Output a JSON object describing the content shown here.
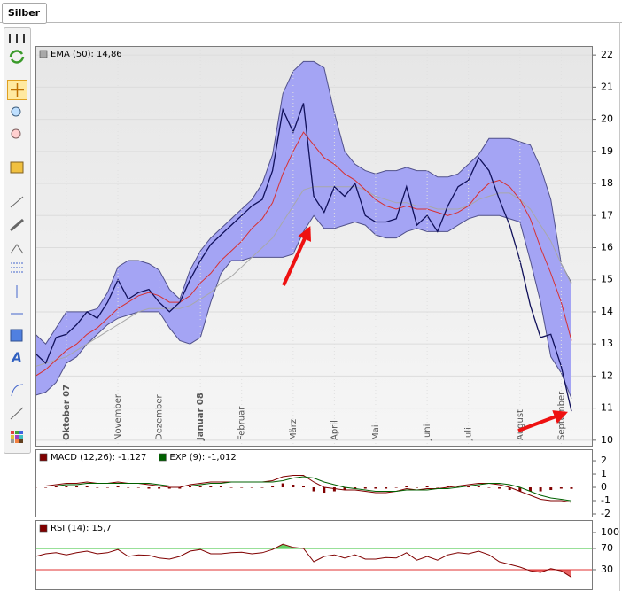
{
  "tab": "Silber",
  "chart_data": [
    {
      "type": "line",
      "categories": [
        null,
        null,
        null,
        "Oktober 07",
        null,
        null,
        null,
        null,
        "November",
        null,
        null,
        null,
        "Dezember",
        null,
        null,
        null,
        "Januar 08",
        null,
        null,
        null,
        "Februar",
        null,
        null,
        null,
        null,
        "März",
        null,
        null,
        null,
        "April",
        null,
        null,
        null,
        "Mai",
        null,
        null,
        null,
        null,
        "Juni",
        null,
        null,
        null,
        "Juli",
        null,
        null,
        null,
        null,
        "August",
        null,
        null,
        null,
        "September",
        null
      ],
      "series": [
        {
          "name": "EMA (50): 14,86",
          "color": "#a8a8a8",
          "values": [
            12.3,
            12.4,
            12.5,
            12.6,
            12.8,
            13.0,
            13.2,
            13.4,
            13.6,
            13.8,
            14.0,
            14.1,
            14.1,
            14.1,
            14.1,
            14.2,
            14.4,
            14.6,
            14.9,
            15.1,
            15.4,
            15.7,
            16.0,
            16.3,
            16.8,
            17.3,
            17.8,
            17.9,
            17.9,
            17.9,
            17.9,
            17.9,
            17.8,
            17.6,
            17.5,
            17.4,
            17.4,
            17.3,
            17.3,
            17.2,
            17.2,
            17.2,
            17.3,
            17.5,
            17.6,
            17.7,
            17.7,
            17.5,
            17.2,
            16.7,
            16.2,
            15.5,
            14.86
          ]
        },
        {
          "color": "#d83030",
          "values": [
            12.0,
            12.2,
            12.5,
            12.8,
            13.0,
            13.3,
            13.5,
            13.8,
            14.1,
            14.3,
            14.5,
            14.6,
            14.5,
            14.3,
            14.3,
            14.5,
            14.9,
            15.2,
            15.6,
            15.9,
            16.2,
            16.6,
            16.9,
            17.4,
            18.3,
            19.0,
            19.6,
            19.2,
            18.8,
            18.6,
            18.3,
            18.1,
            17.8,
            17.5,
            17.3,
            17.2,
            17.3,
            17.2,
            17.2,
            17.1,
            17.0,
            17.1,
            17.3,
            17.7,
            18.0,
            18.1,
            17.9,
            17.5,
            16.9,
            16.0,
            15.2,
            14.3,
            13.1
          ]
        },
        {
          "color": "#10105a",
          "values": [
            12.7,
            12.4,
            13.2,
            13.3,
            13.6,
            14.0,
            13.8,
            14.3,
            15.0,
            14.4,
            14.6,
            14.7,
            14.3,
            14.0,
            14.3,
            15.0,
            15.6,
            16.1,
            16.4,
            16.7,
            17.0,
            17.3,
            17.5,
            18.4,
            20.3,
            19.6,
            20.5,
            17.6,
            17.1,
            17.9,
            17.6,
            18.0,
            17.0,
            16.8,
            16.8,
            16.9,
            17.9,
            16.7,
            17.0,
            16.5,
            17.3,
            17.9,
            18.1,
            18.8,
            18.4,
            17.5,
            16.7,
            15.6,
            14.2,
            13.2,
            13.3,
            12.3,
            10.9
          ]
        }
      ],
      "band_upper": [
        13.3,
        13.0,
        13.5,
        14.0,
        14.0,
        14.0,
        14.1,
        14.6,
        15.4,
        15.6,
        15.6,
        15.5,
        15.3,
        14.7,
        14.4,
        15.3,
        15.9,
        16.3,
        16.6,
        16.9,
        17.2,
        17.5,
        18.0,
        18.9,
        20.8,
        21.5,
        21.8,
        21.8,
        21.6,
        20.2,
        19.0,
        18.6,
        18.4,
        18.3,
        18.4,
        18.4,
        18.5,
        18.4,
        18.4,
        18.2,
        18.2,
        18.3,
        18.6,
        18.9,
        19.4,
        19.4,
        19.4,
        19.3,
        19.2,
        18.5,
        17.5,
        15.5,
        14.9
      ],
      "band_lower": [
        11.4,
        11.5,
        11.8,
        12.4,
        12.6,
        13.0,
        13.3,
        13.6,
        13.8,
        13.9,
        14.0,
        14.0,
        14.0,
        13.5,
        13.1,
        13.0,
        13.2,
        14.3,
        15.2,
        15.6,
        15.6,
        15.7,
        15.7,
        15.7,
        15.7,
        15.8,
        16.5,
        17.0,
        16.6,
        16.6,
        16.7,
        16.8,
        16.7,
        16.4,
        16.3,
        16.3,
        16.5,
        16.6,
        16.5,
        16.5,
        16.5,
        16.7,
        16.9,
        17.0,
        17.0,
        17.0,
        16.9,
        16.8,
        15.6,
        14.3,
        12.6,
        12.1,
        11.3
      ],
      "band_color": "#a4a4f4",
      "ylim": [
        9.83,
        22.28
      ],
      "yticks": [
        10,
        11,
        12,
        13,
        14,
        15,
        16,
        17,
        18,
        19,
        20,
        21,
        22
      ],
      "grid": true
    },
    {
      "type": "line",
      "series": [
        {
          "name": "MACD (12,26): -1,127",
          "color": "#800000",
          "values": [
            0.1,
            0.1,
            0.2,
            0.3,
            0.3,
            0.4,
            0.3,
            0.3,
            0.4,
            0.3,
            0.3,
            0.2,
            0.1,
            0.0,
            0.0,
            0.2,
            0.3,
            0.4,
            0.4,
            0.4,
            0.4,
            0.4,
            0.4,
            0.5,
            0.8,
            0.9,
            0.9,
            0.4,
            0.0,
            -0.1,
            -0.2,
            -0.2,
            -0.3,
            -0.4,
            -0.4,
            -0.3,
            -0.1,
            -0.2,
            -0.1,
            -0.1,
            0.0,
            0.1,
            0.2,
            0.3,
            0.3,
            0.2,
            0.0,
            -0.3,
            -0.6,
            -0.9,
            -1.0,
            -1.0,
            -1.127
          ]
        },
        {
          "name": "EXP (9): -1,012",
          "color": "#006000",
          "values": [
            0.1,
            0.1,
            0.1,
            0.2,
            0.2,
            0.3,
            0.3,
            0.3,
            0.3,
            0.3,
            0.3,
            0.3,
            0.2,
            0.1,
            0.1,
            0.1,
            0.2,
            0.3,
            0.3,
            0.4,
            0.4,
            0.4,
            0.4,
            0.4,
            0.5,
            0.7,
            0.8,
            0.7,
            0.4,
            0.2,
            0.0,
            -0.1,
            -0.2,
            -0.3,
            -0.3,
            -0.3,
            -0.2,
            -0.2,
            -0.2,
            -0.1,
            -0.1,
            0.0,
            0.1,
            0.2,
            0.3,
            0.3,
            0.2,
            0.0,
            -0.3,
            -0.6,
            -0.8,
            -0.9,
            -1.012
          ]
        }
      ],
      "histogram": {
        "color": "#800000",
        "values": [
          0,
          0,
          0.1,
          0.1,
          0.1,
          0.1,
          0,
          0,
          0.1,
          0,
          0,
          -0.1,
          -0.1,
          -0.1,
          -0.1,
          0.1,
          0.1,
          0.1,
          0.1,
          0,
          0,
          0,
          0,
          0.1,
          0.3,
          0.2,
          0.1,
          -0.3,
          -0.4,
          -0.3,
          -0.2,
          -0.1,
          -0.1,
          -0.1,
          -0.1,
          0,
          0.1,
          0,
          0.1,
          0,
          0.1,
          0.1,
          0.1,
          0.1,
          0,
          -0.1,
          -0.2,
          -0.3,
          -0.3,
          -0.3,
          -0.2,
          -0.1,
          -0.115
        ]
      },
      "ylim": [
        -2.2,
        2.87
      ],
      "yticks": [
        2,
        1,
        0,
        -1,
        -2
      ]
    },
    {
      "type": "line",
      "series": [
        {
          "name": "RSI (14): 15,7",
          "color": "#800000",
          "values": [
            55,
            60,
            62,
            58,
            62,
            65,
            60,
            62,
            68,
            55,
            58,
            57,
            52,
            50,
            55,
            65,
            68,
            60,
            60,
            62,
            63,
            60,
            62,
            68,
            78,
            72,
            70,
            45,
            55,
            58,
            52,
            58,
            50,
            50,
            53,
            52,
            62,
            48,
            55,
            48,
            58,
            62,
            60,
            65,
            58,
            45,
            40,
            35,
            28,
            25,
            32,
            28,
            15.7
          ]
        }
      ],
      "reference_lines": [
        {
          "value": 70,
          "color": "#30c030",
          "side": "above"
        },
        {
          "value": 30,
          "color": "#e03030",
          "side": "below"
        }
      ],
      "ylim": [
        -6.7,
        123.3
      ],
      "yticks": [
        100,
        70,
        30
      ]
    }
  ]
}
